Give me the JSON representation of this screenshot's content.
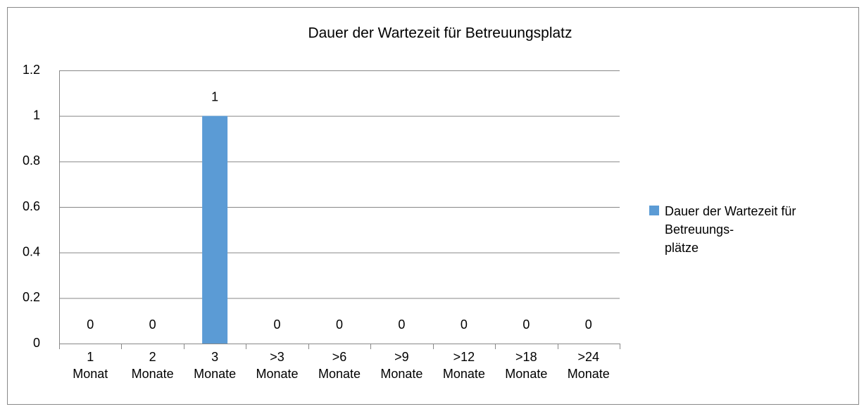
{
  "chart_data": {
    "type": "bar",
    "title": "Dauer der Wartezeit für Betreuungsplatz",
    "categories": [
      "1 Monat",
      "2 Monate",
      "3 Monate",
      ">3 Monate",
      ">6 Monate",
      ">9 Monate",
      ">12 Monate",
      ">18 Monate",
      ">24 Monate"
    ],
    "series": [
      {
        "name": "Dauer der Wartezeit für Betreuungs-\nplätze",
        "color": "#5b9bd5",
        "values": [
          0,
          0,
          1,
          0,
          0,
          0,
          0,
          0,
          0
        ]
      }
    ],
    "ylim": [
      0,
      1.2
    ],
    "yticks": [
      0,
      0.2,
      0.4,
      0.6,
      0.8,
      1,
      1.2
    ],
    "grid": true,
    "legend": "right"
  }
}
